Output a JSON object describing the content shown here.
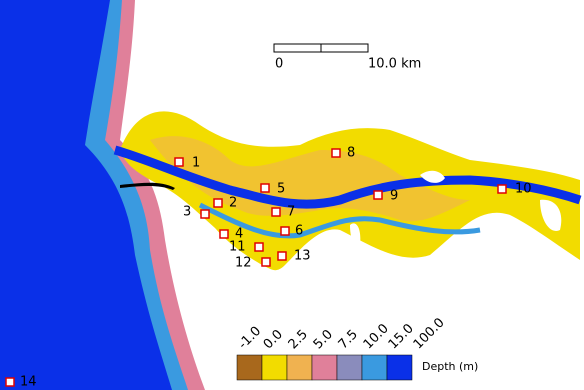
{
  "scale_bar": {
    "start": "0",
    "end": "10.0 km"
  },
  "legend": {
    "title": "Depth (m)",
    "labels": [
      "-1.0",
      "0.0",
      "2.5",
      "5.0",
      "7.5",
      "10.0",
      "15.0",
      "100.0"
    ],
    "colors": [
      "#a8681c",
      "#f2dc00",
      "#f0b250",
      "#e0809a",
      "#8a8cbc",
      "#3a9ae0",
      "#0a30e8"
    ]
  },
  "stations": [
    {
      "label": "1"
    },
    {
      "label": "2"
    },
    {
      "label": "3"
    },
    {
      "label": "4"
    },
    {
      "label": "5"
    },
    {
      "label": "6"
    },
    {
      "label": "7"
    },
    {
      "label": "8"
    },
    {
      "label": "9"
    },
    {
      "label": "10"
    },
    {
      "label": "11"
    },
    {
      "label": "12"
    },
    {
      "label": "13"
    },
    {
      "label": "14"
    }
  ]
}
